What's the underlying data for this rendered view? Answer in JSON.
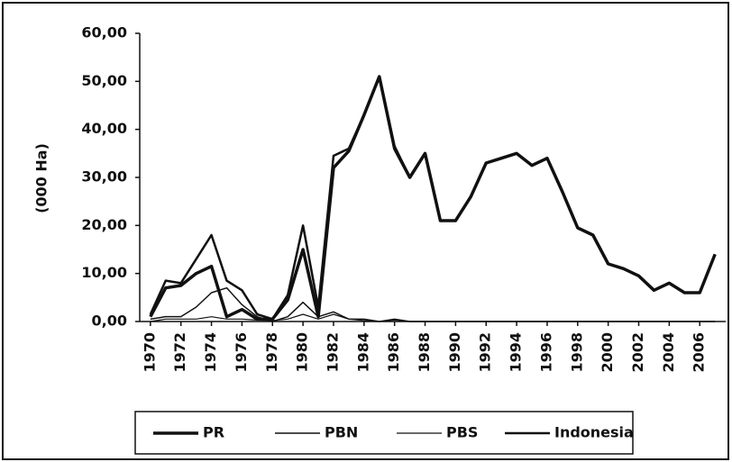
{
  "chart_data": {
    "type": "line",
    "y_label": "(000 Ha)",
    "x": [
      1970,
      1971,
      1972,
      1973,
      1974,
      1975,
      1976,
      1977,
      1978,
      1979,
      1980,
      1981,
      1982,
      1983,
      1984,
      1985,
      1986,
      1987,
      1988,
      1989,
      1990,
      1991,
      1992,
      1993,
      1994,
      1995,
      1996,
      1997,
      1998,
      1999,
      2000,
      2001,
      2002,
      2003,
      2004,
      2005,
      2006,
      2007
    ],
    "xlim": [
      1969.3,
      2007.7
    ],
    "xticks": [
      1970,
      1972,
      1974,
      1976,
      1978,
      1980,
      1982,
      1984,
      1986,
      1988,
      1990,
      1992,
      1994,
      1996,
      1998,
      2000,
      2002,
      2004,
      2006
    ],
    "ylim": [
      0,
      60
    ],
    "yticks": [
      {
        "value": 0,
        "label": "0,00"
      },
      {
        "value": 10,
        "label": "10,00"
      },
      {
        "value": 20,
        "label": "20,00"
      },
      {
        "value": 30,
        "label": "30,00"
      },
      {
        "value": 40,
        "label": "40,00"
      },
      {
        "value": 50,
        "label": "50,00"
      },
      {
        "value": 60,
        "label": "60,00"
      }
    ],
    "series": [
      {
        "name": "PR",
        "color": "#111111",
        "values": [
          1,
          7,
          7.5,
          10,
          11.5,
          1,
          2.5,
          0.5,
          0.5,
          4.5,
          15,
          1,
          32,
          35.5,
          43,
          51,
          36,
          30,
          35,
          21,
          21,
          26,
          33,
          34,
          35,
          32.5,
          34,
          27,
          19.5,
          18,
          12,
          11,
          9.5,
          6.5,
          8,
          6,
          6,
          14
        ]
      },
      {
        "name": "PBN",
        "color": "#111111",
        "values": [
          0.5,
          1,
          1,
          3,
          6,
          7,
          3.5,
          1,
          0,
          1,
          4,
          1,
          2,
          0.5,
          0.5,
          0,
          0.5,
          0,
          0,
          0,
          0,
          0,
          0,
          0,
          0,
          0,
          0,
          0,
          0,
          0,
          0,
          0,
          0,
          0,
          0,
          0,
          0,
          0
        ]
      },
      {
        "name": "PBS",
        "color": "#111111",
        "values": [
          0,
          0.5,
          0.5,
          0.5,
          1,
          0.5,
          0.5,
          0.3,
          0.2,
          0.5,
          1.5,
          0.5,
          1.5,
          0.5,
          0.2,
          0,
          0.3,
          0,
          0,
          0,
          0,
          0,
          0,
          0,
          0,
          0,
          0,
          0,
          0,
          0,
          0,
          0,
          0,
          0,
          0,
          0,
          0,
          0
        ]
      },
      {
        "name": "Indonesia",
        "color": "#111111",
        "values": [
          1.5,
          8.5,
          8,
          13,
          18,
          8.5,
          6.5,
          1.5,
          0.5,
          5.5,
          20,
          3,
          34.5,
          36,
          43,
          51,
          36.5,
          30,
          35,
          21,
          21,
          26,
          33,
          34,
          35,
          32.5,
          34,
          27,
          19.5,
          18,
          12,
          11,
          9.5,
          6.5,
          8,
          6,
          6,
          14
        ]
      }
    ],
    "legend": "bottom"
  }
}
